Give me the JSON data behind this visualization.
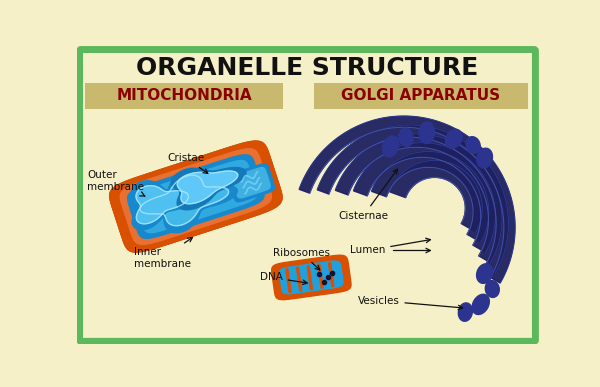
{
  "title": "ORGANELLE STRUCTURE",
  "title_fontsize": 18,
  "title_fontweight": "bold",
  "background_color": "#f5f0c8",
  "border_color": "#5cb85c",
  "border_width": 5,
  "label_mito": "MITOCHONDRIA",
  "label_golgi": "GOLGI APPARATUS",
  "label_bg": "#c8b96e",
  "label_fontsize": 11,
  "label_fontweight": "bold",
  "mito_outer_color": "#d95500",
  "mito_outer_light": "#f07020",
  "mito_inner_color": "#1090cc",
  "mito_cristae_color": "#50c8f0",
  "mito_cristae_light": "#a8e8ff",
  "golgi_dark": "#1e2060",
  "golgi_mid": "#2d3490",
  "golgi_light": "#4050b0",
  "vesicle_color": "#2d3490",
  "text_color": "#111111",
  "label_text_color": "#8B0000",
  "arrow_color": "#111111"
}
